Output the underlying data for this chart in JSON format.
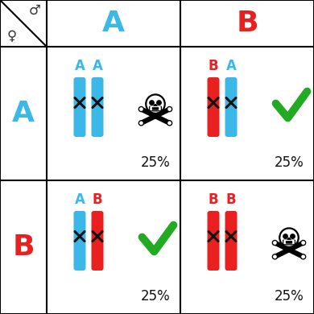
{
  "grid_color": "#000000",
  "bg_color": "#ffffff",
  "blue_color": "#3bb8e8",
  "red_color": "#e82020",
  "green_check_color": "#22aa22",
  "cells": [
    {
      "row": 0,
      "col": 0,
      "chr1_color": "blue",
      "chr1_label": "A",
      "chr2_color": "blue",
      "chr2_label": "A",
      "viable": false,
      "percent": "25%"
    },
    {
      "row": 0,
      "col": 1,
      "chr1_color": "red",
      "chr1_label": "B",
      "chr2_color": "blue",
      "chr2_label": "A",
      "viable": true,
      "percent": "25%"
    },
    {
      "row": 1,
      "col": 0,
      "chr1_color": "blue",
      "chr1_label": "A",
      "chr2_color": "red",
      "chr2_label": "B",
      "viable": true,
      "percent": "25%"
    },
    {
      "row": 1,
      "col": 1,
      "chr1_color": "red",
      "chr1_label": "B",
      "chr2_color": "red",
      "chr2_label": "B",
      "viable": false,
      "percent": "25%"
    }
  ]
}
